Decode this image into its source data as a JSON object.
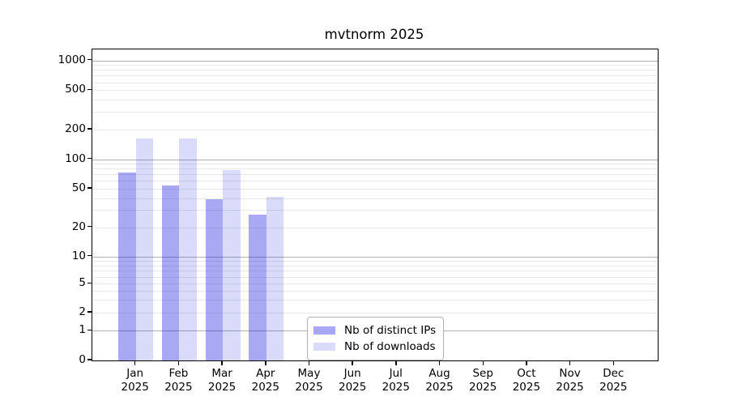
{
  "chart_data": {
    "type": "bar",
    "title": "mvtnorm 2025",
    "categories": [
      "Jan",
      "Feb",
      "Mar",
      "Apr",
      "May",
      "Jun",
      "Jul",
      "Aug",
      "Sep",
      "Oct",
      "Nov",
      "Dec"
    ],
    "x_axis": {
      "tick_label_line2": "2025"
    },
    "series": [
      {
        "name": "Nb of distinct IPs",
        "color": "rgba(10,10,220,0.35)",
        "values": [
          73,
          54,
          39,
          27,
          null,
          null,
          null,
          null,
          null,
          null,
          null,
          null
        ]
      },
      {
        "name": "Nb of downloads",
        "color": "rgba(10,10,220,0.15)",
        "values": [
          163,
          163,
          78,
          41,
          null,
          null,
          null,
          null,
          null,
          null,
          null,
          null
        ]
      }
    ],
    "y_axis": {
      "scale": "symlog",
      "ticks": [
        1000,
        500,
        200,
        100,
        50,
        20,
        10,
        5,
        2,
        1,
        0
      ],
      "range": [
        0,
        1300
      ]
    },
    "grid": {
      "on": true,
      "major_color": "#b0b0b0",
      "minor_color": "#e8e8e8"
    },
    "legend": {
      "position": "lower-left-of-center"
    }
  }
}
